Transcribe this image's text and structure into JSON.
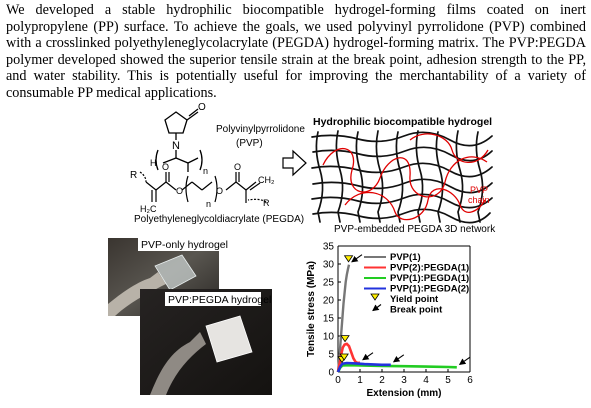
{
  "abstract": {
    "text": "We developed a stable hydrophilic biocompatible hydrogel-forming films coated on inert polypropylene (PP) surface. To achieve the goals, we used polyvinyl pyrrolidone (PVP) combined with a crosslinked polyethyleneglycolacrylate (PEGDA) hydrogel-forming matrix. The PVP:PEGDA polymer developed showed the superior tensile strain at the break point, adhesion strength to the PP, and water stability. This is potentially useful for improving the merchantability of a variety of consumable PP medical applications."
  },
  "scheme": {
    "pvp_name": "Polyvinylpyrrolidone",
    "pvp_abbr": "(PVP)",
    "pegda_name": "Polyethyleneglycoldiacrylate (PEGDA)",
    "atom_N": "N",
    "atom_O": "O",
    "atom_H": "H",
    "sub_n": "n",
    "group_R": "R",
    "group_H2C": "H₂C",
    "group_CH2": "CH₂"
  },
  "network": {
    "title": "Hydrophilic biocompatible hydrogel",
    "caption": "PVP-embedded PEGDA 3D network",
    "chain_label_1": "PVP",
    "chain_label_2": "chain"
  },
  "photos": {
    "pvp_only_label": "PVP-only hydrogel",
    "pvp_pegda_label": "PVP:PEGDA hydrogel"
  },
  "chart_data": {
    "type": "line",
    "xlabel": "Extension (mm)",
    "ylabel": "Tensile stress (MPa)",
    "xlim": [
      0,
      6
    ],
    "ylim": [
      0,
      35
    ],
    "xticks": [
      0,
      1,
      2,
      3,
      4,
      5,
      6
    ],
    "yticks": [
      0,
      5,
      10,
      15,
      20,
      25,
      30,
      35
    ],
    "legend_position": "top-right",
    "series": [
      {
        "name": "PVP(1)",
        "color": "#777777",
        "points": [
          [
            0,
            0
          ],
          [
            0.05,
            3
          ],
          [
            0.1,
            7
          ],
          [
            0.15,
            11
          ],
          [
            0.2,
            15
          ],
          [
            0.25,
            19
          ],
          [
            0.3,
            22
          ],
          [
            0.35,
            25
          ],
          [
            0.4,
            27
          ],
          [
            0.45,
            28.5
          ],
          [
            0.5,
            29.8
          ]
        ]
      },
      {
        "name": "PVP(2):PEGDA(1)",
        "color": "#ff3333",
        "points": [
          [
            0,
            0
          ],
          [
            0.08,
            2.5
          ],
          [
            0.15,
            5
          ],
          [
            0.22,
            6.8
          ],
          [
            0.3,
            7.6
          ],
          [
            0.4,
            7.8
          ],
          [
            0.5,
            7.2
          ],
          [
            0.6,
            5.5
          ],
          [
            0.7,
            3.8
          ],
          [
            0.8,
            2.8
          ],
          [
            0.9,
            2.5
          ],
          [
            1.0,
            2.6
          ]
        ]
      },
      {
        "name": "PVP(1):PEGDA(1)",
        "color": "#22cc22",
        "points": [
          [
            0,
            0
          ],
          [
            0.1,
            1.2
          ],
          [
            0.2,
            1.8
          ],
          [
            0.5,
            1.9
          ],
          [
            1.0,
            1.8
          ],
          [
            2.0,
            1.7
          ],
          [
            3.0,
            1.6
          ],
          [
            4.0,
            1.5
          ],
          [
            5.0,
            1.4
          ],
          [
            5.4,
            1.3
          ]
        ]
      },
      {
        "name": "PVP(1):PEGDA(2)",
        "color": "#2233dd",
        "points": [
          [
            0,
            0
          ],
          [
            0.1,
            1.5
          ],
          [
            0.2,
            2.3
          ],
          [
            0.4,
            2.5
          ],
          [
            0.8,
            2.4
          ],
          [
            1.2,
            2.2
          ],
          [
            1.6,
            2.1
          ],
          [
            2.0,
            2.0
          ],
          [
            2.4,
            2.0
          ]
        ]
      }
    ],
    "yield_points": [
      [
        0.48,
        29.8
      ],
      [
        0.32,
        7.6
      ],
      [
        0.18,
        1.8
      ],
      [
        0.28,
        2.5
      ]
    ],
    "break_points": [
      [
        0.5,
        29.8
      ],
      [
        1.0,
        2.6
      ],
      [
        5.4,
        1.3
      ],
      [
        2.4,
        2.0
      ]
    ],
    "annotations": [
      "Yield point",
      "Break point"
    ]
  }
}
